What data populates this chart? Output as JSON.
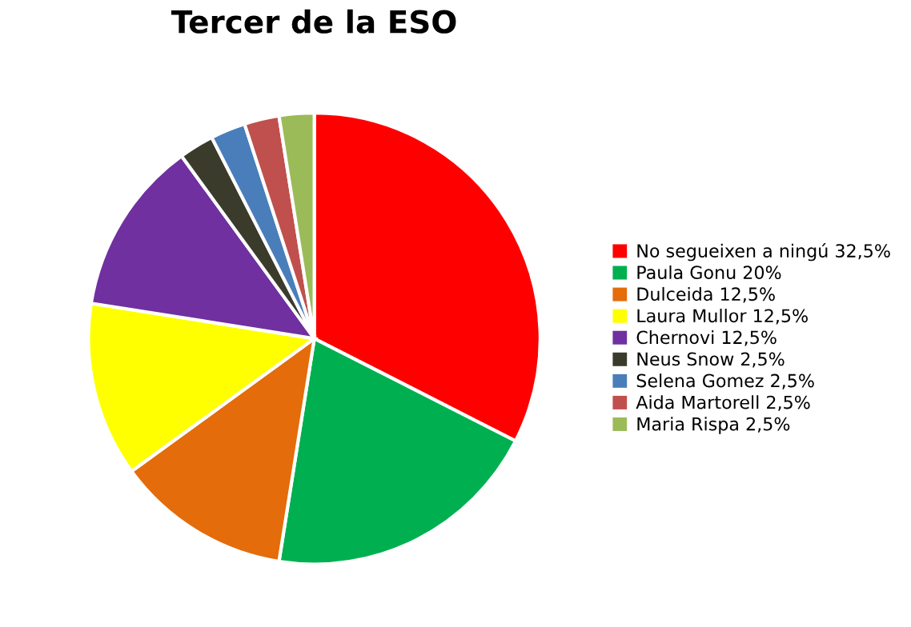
{
  "chart_data": {
    "type": "pie",
    "title": "Tercer de la ESO",
    "categories": [
      "No segueixen a ningú 32,5%",
      "Paula Gonu 20%",
      "Dulceida 12,5%",
      "Laura Mullor 12,5%",
      "Chernovi 12,5%",
      "Neus Snow 2,5%",
      "Selena Gomez 2,5%",
      "Aida Martorell 2,5%",
      "Maria Rispa 2,5%"
    ],
    "values": [
      32.5,
      20,
      12.5,
      12.5,
      12.5,
      2.5,
      2.5,
      2.5,
      2.5
    ],
    "colors": [
      "#ff0000",
      "#00b050",
      "#e46c0a",
      "#ffff00",
      "#7030a0",
      "#3b3b2b",
      "#4a7ebb",
      "#c0504d",
      "#9bbb59"
    ],
    "legend": "right"
  }
}
